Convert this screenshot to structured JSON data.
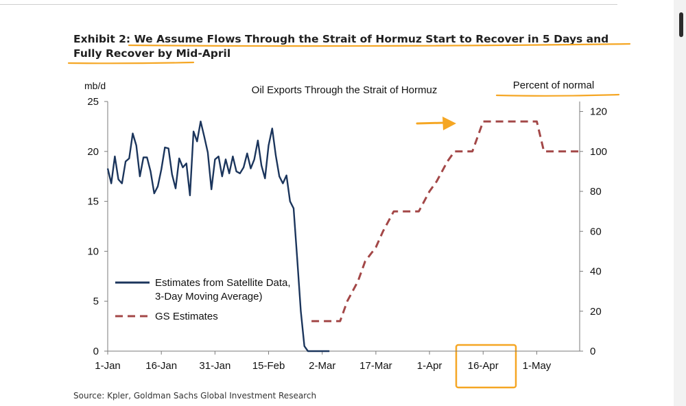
{
  "exhibit": {
    "label": "Exhibit 2:",
    "title": "We Assume Flows Through the Strait of Hormuz Start to Recover in 5 Days and Fully Recover by Mid-April"
  },
  "source": "Source: Kpler, Goldman Sachs Global Investment Research",
  "annotation_colors": {
    "highlight": "#f5a623"
  },
  "chart_data": {
    "type": "line",
    "title": "Oil Exports Through the Strait of Hormuz",
    "y_left_label": "mb/d",
    "y_right_label": "Percent of normal",
    "y_left_lim": [
      0,
      25
    ],
    "y_left_ticks": [
      "0",
      "5",
      "10",
      "15",
      "20",
      "25"
    ],
    "y_right_lim": [
      0,
      125
    ],
    "y_right_ticks": [
      "0",
      "20",
      "40",
      "60",
      "80",
      "100",
      "120"
    ],
    "x_ticks": [
      "1-Jan",
      "16-Jan",
      "31-Jan",
      "15-Feb",
      "2-Mar",
      "17-Mar",
      "1-Apr",
      "16-Apr",
      "1-May"
    ],
    "x_tick_days": [
      0,
      15,
      30,
      45,
      60,
      75,
      90,
      105,
      120
    ],
    "x_lim_days": [
      0,
      132
    ],
    "legend": {
      "position": "bottom-left"
    },
    "series": [
      {
        "name": "Estimates from Satellite Data, 3-Day Moving Average)",
        "axis": "left",
        "color": "#1b355c",
        "style": "solid",
        "x": [
          0,
          1,
          2,
          3,
          4,
          5,
          6,
          7,
          8,
          9,
          10,
          11,
          12,
          13,
          14,
          15,
          16,
          17,
          18,
          19,
          20,
          21,
          22,
          23,
          24,
          25,
          26,
          27,
          28,
          29,
          30,
          31,
          32,
          33,
          34,
          35,
          36,
          37,
          38,
          39,
          40,
          41,
          42,
          43,
          44,
          45,
          46,
          47,
          48,
          49,
          50,
          51,
          52,
          53,
          54,
          55,
          56,
          57,
          58,
          59,
          60,
          61,
          62
        ],
        "values": [
          18.3,
          16.8,
          19.5,
          17.2,
          16.8,
          19,
          19.3,
          21.8,
          20.6,
          17.5,
          19.4,
          19.4,
          18,
          15.8,
          16.5,
          18.2,
          20.4,
          20.3,
          17.7,
          16.3,
          19.3,
          18.4,
          18.8,
          15.6,
          22,
          21,
          23,
          21.5,
          19.9,
          16.2,
          19.2,
          19.5,
          17.5,
          19.2,
          17.8,
          19.5,
          18,
          17.8,
          18.4,
          19.8,
          18.3,
          19.2,
          21.1,
          18.6,
          17.3,
          20.6,
          22.3,
          19.6,
          17.5,
          16.8,
          17.6,
          15,
          14.3,
          9.3,
          4,
          0.5,
          0,
          0,
          0,
          0,
          0,
          0,
          0
        ]
      },
      {
        "name": "GS Estimates",
        "axis": "right",
        "color": "#a34747",
        "style": "dashed",
        "x": [
          57,
          62,
          65,
          67,
          70,
          72,
          75,
          77,
          80,
          82,
          85,
          87,
          90,
          92,
          95,
          97,
          100,
          102,
          105,
          107,
          110,
          112,
          115,
          117,
          120,
          122,
          125,
          127,
          130,
          132
        ],
        "values": [
          15,
          15,
          15,
          25,
          35,
          45,
          52,
          60,
          70,
          70,
          70,
          70,
          80,
          85,
          95,
          100,
          100,
          100,
          115,
          115,
          115,
          115,
          115,
          115,
          115,
          100,
          100,
          100,
          100,
          100
        ]
      }
    ]
  }
}
